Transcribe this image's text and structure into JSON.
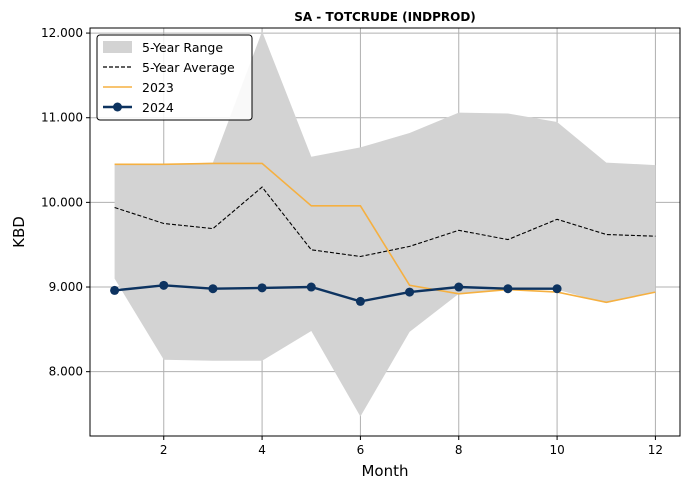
{
  "chart_data": {
    "type": "line",
    "title": "SA - TOTCRUDE (INDPROD)",
    "xlabel": "Month",
    "ylabel": "KBD",
    "xlim": [
      0.5,
      12.5
    ],
    "ylim": [
      7240,
      12060
    ],
    "xticks": [
      2,
      4,
      6,
      8,
      10,
      12
    ],
    "xtick_labels": [
      "2",
      "4",
      "6",
      "8",
      "10",
      "12"
    ],
    "yticks": [
      8000,
      9000,
      10000,
      11000,
      12000
    ],
    "ytick_labels": [
      "8.000",
      "9.000",
      "10.000",
      "11.000",
      "12.000"
    ],
    "grid": true,
    "legend_position": "top-left",
    "range": {
      "name": "5-Year Range",
      "color": "#d3d3d3",
      "x": [
        1,
        2,
        3,
        4,
        5,
        6,
        7,
        8,
        9,
        10,
        11,
        12
      ],
      "upper": [
        10450,
        10450,
        10470,
        12020,
        10540,
        10650,
        10820,
        11060,
        11050,
        10950,
        10470,
        10440
      ],
      "lower": [
        9100,
        8140,
        8130,
        8130,
        8480,
        7470,
        8470,
        8920,
        8970,
        8970,
        8810,
        8940
      ]
    },
    "series": [
      {
        "name": "5-Year Average",
        "color": "#000000",
        "style": "dashed",
        "x": [
          1,
          2,
          3,
          4,
          5,
          6,
          7,
          8,
          9,
          10,
          11,
          12
        ],
        "values": [
          9940,
          9750,
          9690,
          10180,
          9440,
          9360,
          9480,
          9670,
          9560,
          9800,
          9620,
          9600
        ]
      },
      {
        "name": "2023",
        "color": "#f5b041",
        "style": "solid",
        "x": [
          1,
          2,
          3,
          4,
          5,
          6,
          7,
          8,
          9,
          10,
          11,
          12
        ],
        "values": [
          10450,
          10450,
          10460,
          10460,
          9960,
          9960,
          9020,
          8920,
          8970,
          8940,
          8820,
          8940
        ]
      },
      {
        "name": "2024",
        "color": "#0d3360",
        "style": "solid-marker",
        "x": [
          1,
          2,
          3,
          4,
          5,
          6,
          7,
          8,
          9,
          10
        ],
        "values": [
          8960,
          9020,
          8980,
          8990,
          9000,
          8830,
          8940,
          9000,
          8980,
          8980
        ]
      }
    ]
  }
}
